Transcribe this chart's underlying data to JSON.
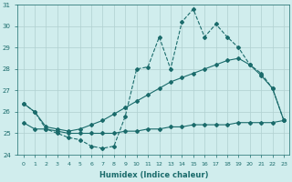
{
  "xlabel": "Humidex (Indice chaleur)",
  "xlim": [
    -0.5,
    23.5
  ],
  "ylim": [
    24,
    31
  ],
  "yticks": [
    24,
    25,
    26,
    27,
    28,
    29,
    30,
    31
  ],
  "xticks": [
    0,
    1,
    2,
    3,
    4,
    5,
    6,
    7,
    8,
    9,
    10,
    11,
    12,
    13,
    14,
    15,
    16,
    17,
    18,
    19,
    20,
    21,
    22,
    23
  ],
  "background_color": "#d0eded",
  "line_color": "#1a6b6b",
  "grid_color": "#b0d0d0",
  "line1_x": [
    0,
    1,
    2,
    3,
    4,
    5,
    6,
    7,
    8,
    9,
    10,
    11,
    12,
    13,
    14,
    15,
    16,
    17,
    18,
    19,
    20,
    21,
    22,
    23
  ],
  "line1_y": [
    26.4,
    26.0,
    25.2,
    25.0,
    24.8,
    24.7,
    24.4,
    24.3,
    24.4,
    25.8,
    28.0,
    28.1,
    29.5,
    28.0,
    30.2,
    30.8,
    29.5,
    30.1,
    29.5,
    29.0,
    28.2,
    27.8,
    27.1,
    25.6
  ],
  "line2_x": [
    0,
    1,
    2,
    3,
    4,
    5,
    6,
    7,
    8,
    9,
    10,
    11,
    12,
    13,
    14,
    15,
    16,
    17,
    18,
    19,
    20,
    21,
    22,
    23
  ],
  "line2_y": [
    25.5,
    25.2,
    25.2,
    25.1,
    25.0,
    25.0,
    25.0,
    25.0,
    25.0,
    25.1,
    25.1,
    25.2,
    25.2,
    25.3,
    25.3,
    25.4,
    25.4,
    25.4,
    25.4,
    25.5,
    25.5,
    25.5,
    25.5,
    25.6
  ],
  "line3_x": [
    0,
    1,
    2,
    3,
    4,
    5,
    6,
    7,
    8,
    9,
    10,
    11,
    12,
    13,
    14,
    15,
    16,
    17,
    18,
    19,
    20,
    21,
    22,
    23
  ],
  "line3_y": [
    26.4,
    26.0,
    25.3,
    25.2,
    25.1,
    25.2,
    25.4,
    25.6,
    25.9,
    26.2,
    26.5,
    26.8,
    27.1,
    27.4,
    27.6,
    27.8,
    28.0,
    28.2,
    28.4,
    28.5,
    28.2,
    27.7,
    27.1,
    25.6
  ],
  "marker": "D",
  "markersize": 2.0,
  "linewidth": 0.8
}
